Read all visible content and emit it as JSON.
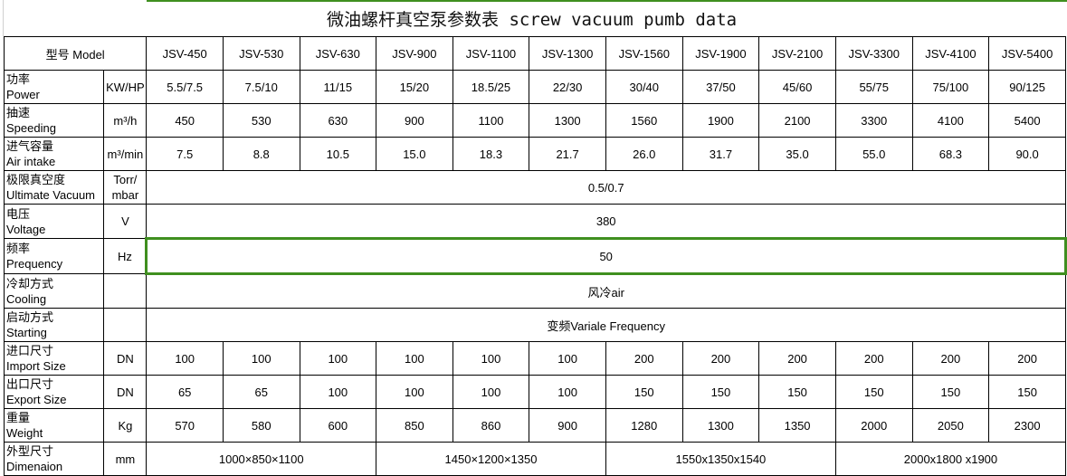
{
  "title": "微油螺杆真空泵参数表 screw vacuum pumb data",
  "accent_color": "#3f8f1f",
  "header": {
    "model_label": "型号 Model",
    "models": [
      "JSV-450",
      "JSV-530",
      "JSV-630",
      "JSV-900",
      "JSV-1100",
      "JSV-1300",
      "JSV-1560",
      "JSV-1900",
      "JSV-2100",
      "JSV-3300",
      "JSV-4100",
      "JSV-5400"
    ]
  },
  "rows": [
    {
      "cn": "功率",
      "en": "Power",
      "unit": "KW/HP",
      "values": [
        "5.5/7.5",
        "7.5/10",
        "11/15",
        "15/20",
        "18.5/25",
        "22/30",
        "30/40",
        "37/50",
        "45/60",
        "55/75",
        "75/100",
        "90/125"
      ]
    },
    {
      "cn": "抽速",
      "en": "Speeding",
      "unit": "m³/h",
      "values": [
        "450",
        "530",
        "630",
        "900",
        "1100",
        "1300",
        "1560",
        "1900",
        "2100",
        "3300",
        "4100",
        "5400"
      ]
    },
    {
      "cn": "进气容量",
      "en": "Air intake",
      "unit": "m³/min",
      "values": [
        "7.5",
        "8.8",
        "10.5",
        "15.0",
        "18.3",
        "21.7",
        "26.0",
        "31.7",
        "35.0",
        "55.0",
        "68.3",
        "90.0"
      ]
    },
    {
      "cn": "极限真空度",
      "en": "Ultimate Vacuum",
      "unit": "Torr/ mbar",
      "merged": "0.5/0.7"
    },
    {
      "cn": "电压",
      "en": "Voltage",
      "unit": "V",
      "merged": "380"
    },
    {
      "cn": "频率",
      "en": "Prequency",
      "unit": "Hz",
      "merged": "50",
      "selected": true
    },
    {
      "cn": "冷却方式",
      "en": "Cooling",
      "unit": "",
      "merged": "风冷air"
    },
    {
      "cn": "启动方式",
      "en": "Starting",
      "unit": "",
      "merged": "变频Variale Frequency"
    },
    {
      "cn": "进口尺寸",
      "en": "Import Size",
      "unit": "DN",
      "values": [
        "100",
        "100",
        "100",
        "100",
        "100",
        "100",
        "200",
        "200",
        "200",
        "200",
        "200",
        "200"
      ]
    },
    {
      "cn": "出口尺寸",
      "en": "Export Size",
      "unit": "DN",
      "values": [
        "65",
        "65",
        "100",
        "100",
        "100",
        "100",
        "150",
        "150",
        "150",
        "150",
        "150",
        "150"
      ]
    },
    {
      "cn": "重量",
      "en": "Weight",
      "unit": "Kg",
      "values": [
        "570",
        "580",
        "600",
        "850",
        "860",
        "900",
        "1280",
        "1300",
        "1350",
        "2000",
        "2050",
        "2300"
      ]
    },
    {
      "cn": "外型尺寸",
      "en": "Dimenaion",
      "unit": "mm",
      "groups": [
        "1000×850×1100",
        "1450×1200×1350",
        "1550x1350x1540",
        "2000x1800 x1900"
      ]
    }
  ]
}
